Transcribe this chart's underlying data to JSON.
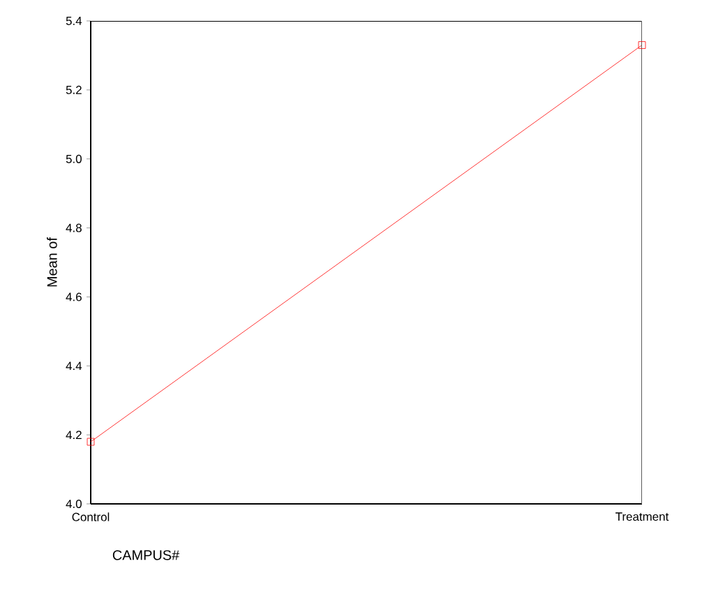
{
  "chart_data": {
    "type": "line",
    "ylabel": "Mean of",
    "xlabel": "CAMPUS#",
    "categories": [
      "Control",
      "Treatment"
    ],
    "series": [
      {
        "color": "#ff0000",
        "values": [
          4.18,
          5.33
        ]
      }
    ],
    "ylim": [
      4.0,
      5.4
    ],
    "yticks": [
      {
        "value": 4.0,
        "label": "4.0"
      },
      {
        "value": 4.2,
        "label": "4.2"
      },
      {
        "value": 4.4,
        "label": "4.4"
      },
      {
        "value": 4.6,
        "label": "4.6"
      },
      {
        "value": 4.8,
        "label": "4.8"
      },
      {
        "value": 5.0,
        "label": "5.0"
      },
      {
        "value": 5.2,
        "label": "5.2"
      },
      {
        "value": 5.4,
        "label": "5.4"
      }
    ],
    "marker": "square",
    "line_style": "solid"
  }
}
